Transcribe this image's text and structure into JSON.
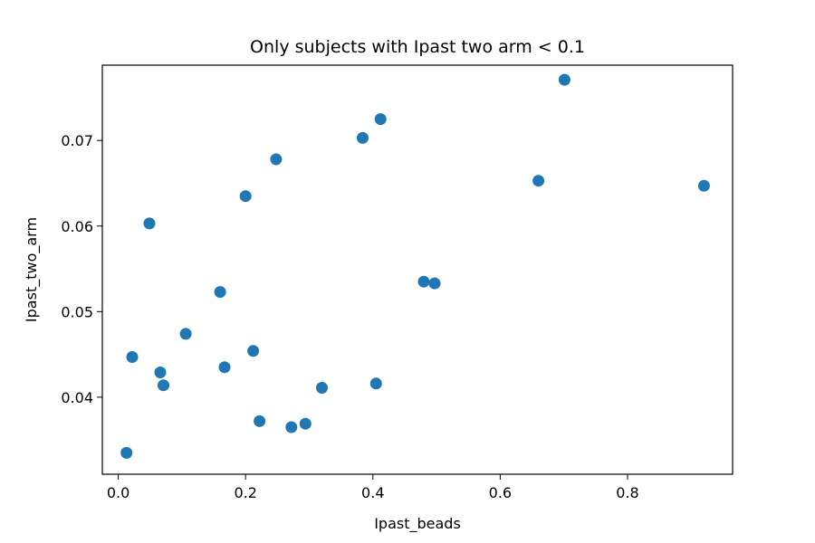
{
  "chart_data": {
    "type": "scatter",
    "title": "Only subjects with Ipast two arm < 0.1",
    "xlabel": "Ipast_beads",
    "ylabel": "Ipast_two_arm",
    "xlim": [
      -0.025,
      0.965
    ],
    "ylim": [
      0.031,
      0.0788
    ],
    "xticks": [
      0.0,
      0.2,
      0.4,
      0.6,
      0.8
    ],
    "xtick_labels": [
      "0.0",
      "0.2",
      "0.4",
      "0.6",
      "0.8"
    ],
    "yticks": [
      0.04,
      0.05,
      0.06,
      0.07
    ],
    "ytick_labels": [
      "0.04",
      "0.05",
      "0.06",
      "0.07"
    ],
    "grid": false,
    "legend": "none",
    "marker_color": "#1f77b4",
    "points": [
      {
        "x": 0.013,
        "y": 0.0335
      },
      {
        "x": 0.022,
        "y": 0.0447
      },
      {
        "x": 0.049,
        "y": 0.0603
      },
      {
        "x": 0.066,
        "y": 0.0429
      },
      {
        "x": 0.071,
        "y": 0.0414
      },
      {
        "x": 0.106,
        "y": 0.0474
      },
      {
        "x": 0.16,
        "y": 0.0523
      },
      {
        "x": 0.167,
        "y": 0.0435
      },
      {
        "x": 0.2,
        "y": 0.0635
      },
      {
        "x": 0.212,
        "y": 0.0454
      },
      {
        "x": 0.222,
        "y": 0.0372
      },
      {
        "x": 0.248,
        "y": 0.0678
      },
      {
        "x": 0.272,
        "y": 0.0365
      },
      {
        "x": 0.294,
        "y": 0.0369
      },
      {
        "x": 0.32,
        "y": 0.0411
      },
      {
        "x": 0.384,
        "y": 0.0703
      },
      {
        "x": 0.405,
        "y": 0.0416
      },
      {
        "x": 0.412,
        "y": 0.0725
      },
      {
        "x": 0.48,
        "y": 0.0535
      },
      {
        "x": 0.497,
        "y": 0.0533
      },
      {
        "x": 0.66,
        "y": 0.0653
      },
      {
        "x": 0.701,
        "y": 0.0771
      },
      {
        "x": 0.92,
        "y": 0.0647
      }
    ]
  }
}
